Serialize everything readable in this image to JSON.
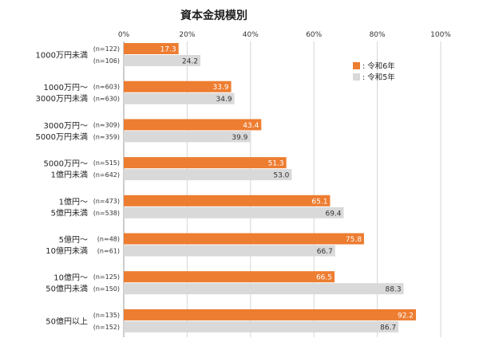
{
  "chart_data": {
    "type": "bar",
    "orientation": "horizontal",
    "title": "資本金規模別",
    "xlabel": "",
    "ylabel": "",
    "xlim": [
      0,
      100
    ],
    "x_ticks": [
      "0%",
      "20%",
      "40%",
      "60%",
      "80%",
      "100%"
    ],
    "legend_position": "top-right",
    "grid": true,
    "colors": {
      "r6": "#ed7d31",
      "r5": "#d9d9d9"
    },
    "series": [
      {
        "key": "r6",
        "name": "令和6年",
        "legend_label": ": 令和6年"
      },
      {
        "key": "r5",
        "name": "令和5年",
        "legend_label": ": 令和5年"
      }
    ],
    "categories": [
      {
        "lines": [
          "1000万円未満"
        ],
        "n_r6": "(n=122)",
        "n_r5": "(n=106)",
        "r6": 17.3,
        "r5": 24.2
      },
      {
        "lines": [
          "1000万円～",
          "3000万円未満"
        ],
        "n_r6": "(n=603)",
        "n_r5": "(n=630)",
        "r6": 33.9,
        "r5": 34.9
      },
      {
        "lines": [
          "3000万円～",
          "5000万円未満"
        ],
        "n_r6": "(n=309)",
        "n_r5": "(n=359)",
        "r6": 43.4,
        "r5": 39.9
      },
      {
        "lines": [
          "5000万円～",
          "1億円未満"
        ],
        "n_r6": "(n=515)",
        "n_r5": "(n=642)",
        "r6": 51.3,
        "r5": 53.0
      },
      {
        "lines": [
          "1億円～",
          "5億円未満"
        ],
        "n_r6": "(n=473)",
        "n_r5": "(n=538)",
        "r6": 65.1,
        "r5": 69.4
      },
      {
        "lines": [
          "5億円～",
          "10億円未満"
        ],
        "n_r6": "(n=48)",
        "n_r5": "(n=61)",
        "r6": 75.8,
        "r5": 66.7
      },
      {
        "lines": [
          "10億円～",
          "50億円未満"
        ],
        "n_r6": "(n=125)",
        "n_r5": "(n=150)",
        "r6": 66.5,
        "r5": 88.3
      },
      {
        "lines": [
          "50億円以上"
        ],
        "n_r6": "(n=135)",
        "n_r5": "(n=152)",
        "r6": 92.2,
        "r5": 86.7
      }
    ]
  }
}
